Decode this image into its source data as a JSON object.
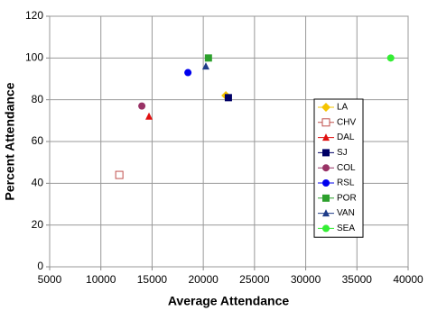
{
  "chart_data": {
    "type": "scatter",
    "x_label": "Average Attendance",
    "y_label": "Percent Attendance",
    "xlim": [
      5000,
      40000
    ],
    "xticks": [
      5000,
      10000,
      15000,
      20000,
      25000,
      30000,
      35000,
      40000
    ],
    "ylim": [
      0,
      120
    ],
    "yticks": [
      0,
      20,
      40,
      60,
      80,
      100,
      120
    ],
    "grid": true,
    "legend": "center-right",
    "series": [
      {
        "name": "LA",
        "color": "#f5c400",
        "marker": "diamond",
        "x": [
          22200
        ],
        "values": [
          82
        ]
      },
      {
        "name": "CHV",
        "color": "#c0504d",
        "marker": "square-open",
        "x": [
          11800
        ],
        "values": [
          44
        ]
      },
      {
        "name": "DAL",
        "color": "#e01010",
        "marker": "triangle",
        "x": [
          14700
        ],
        "values": [
          72
        ]
      },
      {
        "name": "SJ",
        "color": "#000066",
        "marker": "square",
        "x": [
          22450
        ],
        "values": [
          81
        ]
      },
      {
        "name": "COL",
        "color": "#993366",
        "marker": "circle",
        "x": [
          14000
        ],
        "values": [
          77
        ]
      },
      {
        "name": "RSL",
        "color": "#0000ee",
        "marker": "circle",
        "x": [
          18500
        ],
        "values": [
          93
        ]
      },
      {
        "name": "POR",
        "color": "#2ca02c",
        "marker": "square",
        "x": [
          20500
        ],
        "values": [
          100
        ]
      },
      {
        "name": "VAN",
        "color": "#1f3c88",
        "marker": "triangle",
        "x": [
          20250
        ],
        "values": [
          96
        ]
      },
      {
        "name": "SEA",
        "color": "#33ee33",
        "marker": "circle",
        "x": [
          38300
        ],
        "values": [
          100
        ]
      }
    ]
  }
}
